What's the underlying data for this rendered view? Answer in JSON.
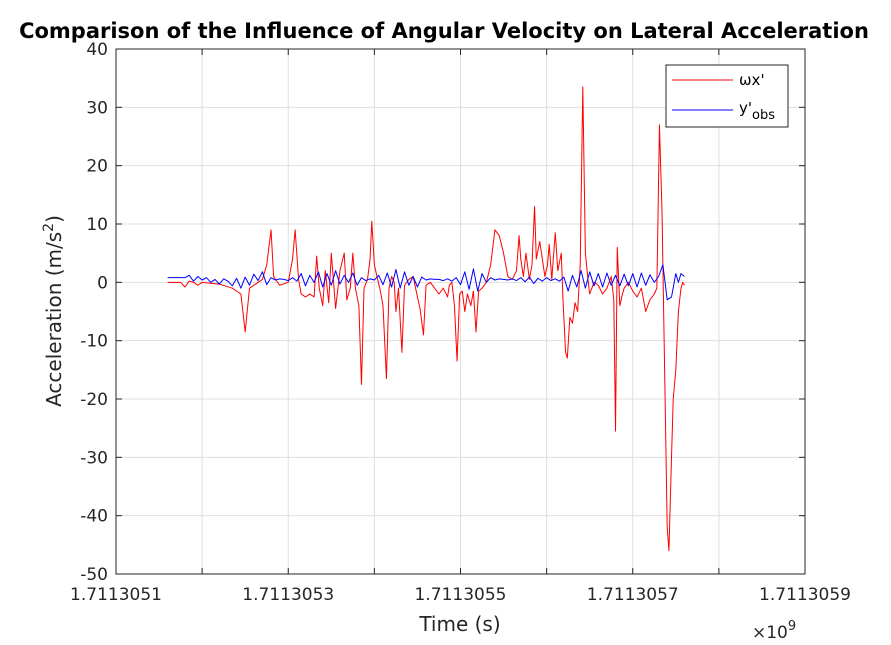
{
  "chart_data": {
    "type": "line",
    "title": "Comparison of the Influence of Angular Velocity on Lateral Acceleration",
    "xlabel": "Time (s)",
    "ylabel": "Acceleration (m/s²)",
    "ylabel_base": "Acceleration (m/s",
    "ylabel_sup": "2",
    "ylabel_end": ")",
    "x_exponent_prefix": "×10",
    "x_exponent": "9",
    "x_ticks": [
      "1.7113051",
      "1.7113053",
      "1.7113055",
      "1.7113057",
      "1.7113059"
    ],
    "x_tick_values": [
      1.7113051,
      1.7113053,
      1.7113055,
      1.7113057,
      1.7113059
    ],
    "xlim": [
      1.7113051,
      1.7113059
    ],
    "y_ticks": [
      "-50",
      "-40",
      "-30",
      "-20",
      "-10",
      "0",
      "10",
      "20",
      "30",
      "40"
    ],
    "y_tick_values": [
      -50,
      -40,
      -30,
      -20,
      -10,
      0,
      10,
      20,
      30,
      40
    ],
    "ylim": [
      -50,
      40
    ],
    "grid": true,
    "legend_position": "top-right",
    "series": [
      {
        "name": "ωx'",
        "label_main": "ωx'",
        "color": "#ff0000",
        "points": [
          [
            1.71130516,
            0.0
          ],
          [
            1.711305175,
            0.0
          ],
          [
            1.71130518,
            -0.8
          ],
          [
            1.711305185,
            0.2
          ],
          [
            1.71130519,
            0.0
          ],
          [
            1.711305195,
            -0.5
          ],
          [
            1.7113052,
            0.0
          ],
          [
            1.71130522,
            -0.3
          ],
          [
            1.711305235,
            -1.0
          ],
          [
            1.711305245,
            -2.0
          ],
          [
            1.71130525,
            -8.5
          ],
          [
            1.711305255,
            -1.0
          ],
          [
            1.71130527,
            0.5
          ],
          [
            1.711305275,
            3.0
          ],
          [
            1.71130528,
            9.0
          ],
          [
            1.711305283,
            1.0
          ],
          [
            1.71130529,
            -0.5
          ],
          [
            1.7113053,
            0.0
          ],
          [
            1.711305305,
            4.0
          ],
          [
            1.711305308,
            9.0
          ],
          [
            1.711305312,
            0.5
          ],
          [
            1.711305315,
            -2.0
          ],
          [
            1.71130532,
            -2.5
          ],
          [
            1.711305325,
            -2.0
          ],
          [
            1.71130533,
            -2.5
          ],
          [
            1.711305333,
            4.5
          ],
          [
            1.711305336,
            -1.0
          ],
          [
            1.71130534,
            -4.0
          ],
          [
            1.711305343,
            2.0
          ],
          [
            1.711305347,
            -3.5
          ],
          [
            1.71130535,
            5.0
          ],
          [
            1.711305355,
            -4.5
          ],
          [
            1.71130536,
            2.0
          ],
          [
            1.711305365,
            5.0
          ],
          [
            1.711305368,
            -3.0
          ],
          [
            1.711305372,
            -1.0
          ],
          [
            1.711305375,
            5.0
          ],
          [
            1.711305378,
            -1.0
          ],
          [
            1.711305382,
            -4.0
          ],
          [
            1.711305385,
            -17.5
          ],
          [
            1.711305388,
            -1.0
          ],
          [
            1.711305392,
            0.5
          ],
          [
            1.711305395,
            4.0
          ],
          [
            1.711305397,
            10.5
          ],
          [
            1.7113054,
            3.0
          ],
          [
            1.711305403,
            1.0
          ],
          [
            1.711305407,
            -1.5
          ],
          [
            1.71130541,
            -4.0
          ],
          [
            1.711305414,
            -16.5
          ],
          [
            1.711305417,
            -1.0
          ],
          [
            1.71130542,
            1.0
          ],
          [
            1.711305423,
            0.0
          ],
          [
            1.711305425,
            -5.0
          ],
          [
            1.711305428,
            -1.0
          ],
          [
            1.711305432,
            -12.0
          ],
          [
            1.711305435,
            -0.5
          ],
          [
            1.71130544,
            0.5
          ],
          [
            1.711305445,
            1.0
          ],
          [
            1.71130545,
            -2.5
          ],
          [
            1.711305453,
            -4.5
          ],
          [
            1.711305457,
            -9.0
          ],
          [
            1.71130546,
            -0.5
          ],
          [
            1.711305465,
            0.0
          ],
          [
            1.71130547,
            -1.0
          ],
          [
            1.711305475,
            -2.0
          ],
          [
            1.71130548,
            -1.0
          ],
          [
            1.711305485,
            -2.5
          ],
          [
            1.711305487,
            -0.5
          ],
          [
            1.71130549,
            0.0
          ],
          [
            1.711305493,
            -4.0
          ],
          [
            1.711305496,
            -13.5
          ],
          [
            1.711305499,
            -2.0
          ],
          [
            1.711305502,
            -1.5
          ],
          [
            1.711305505,
            -5.0
          ],
          [
            1.711305508,
            -2.0
          ],
          [
            1.711305512,
            -4.0
          ],
          [
            1.711305515,
            -1.5
          ],
          [
            1.711305518,
            -8.5
          ],
          [
            1.711305521,
            -1.5
          ],
          [
            1.711305525,
            -1.0
          ],
          [
            1.71130553,
            0.0
          ],
          [
            1.711305535,
            3.0
          ],
          [
            1.71130554,
            9.0
          ],
          [
            1.711305545,
            8.0
          ],
          [
            1.71130555,
            5.0
          ],
          [
            1.711305555,
            1.0
          ],
          [
            1.71130556,
            0.5
          ],
          [
            1.711305565,
            2.0
          ],
          [
            1.711305568,
            8.0
          ],
          [
            1.71130557,
            4.0
          ],
          [
            1.711305573,
            1.0
          ],
          [
            1.711305576,
            5.0
          ],
          [
            1.71130558,
            0.5
          ],
          [
            1.711305583,
            3.0
          ],
          [
            1.711305586,
            13.0
          ],
          [
            1.711305588,
            4.0
          ],
          [
            1.711305592,
            7.0
          ],
          [
            1.711305595,
            4.0
          ],
          [
            1.711305598,
            1.0
          ],
          [
            1.711305601,
            3.0
          ],
          [
            1.711305603,
            6.5
          ],
          [
            1.711305606,
            0.5
          ],
          [
            1.71130561,
            8.5
          ],
          [
            1.711305613,
            2.0
          ],
          [
            1.711305617,
            5.0
          ],
          [
            1.711305619,
            -3.0
          ],
          [
            1.711305622,
            -12.0
          ],
          [
            1.711305624,
            -13.0
          ],
          [
            1.711305627,
            -6.0
          ],
          [
            1.71130563,
            -7.0
          ],
          [
            1.711305633,
            -3.5
          ],
          [
            1.711305636,
            -5.0
          ],
          [
            1.711305639,
            3.0
          ],
          [
            1.711305642,
            33.5
          ],
          [
            1.711305645,
            5.0
          ],
          [
            1.711305648,
            0.5
          ],
          [
            1.71130565,
            -2.0
          ],
          [
            1.711305655,
            0.0
          ],
          [
            1.71130566,
            -0.5
          ],
          [
            1.711305665,
            -2.0
          ],
          [
            1.71130567,
            -1.0
          ],
          [
            1.711305675,
            1.0
          ],
          [
            1.711305678,
            -3.0
          ],
          [
            1.71130568,
            -25.5
          ],
          [
            1.711305682,
            6.0
          ],
          [
            1.711305685,
            -4.0
          ],
          [
            1.711305688,
            -2.0
          ],
          [
            1.71130569,
            -1.0
          ],
          [
            1.711305695,
            0.0
          ],
          [
            1.7113057,
            -1.5
          ],
          [
            1.711305705,
            -2.5
          ],
          [
            1.71130571,
            -1.0
          ],
          [
            1.711305715,
            -5.0
          ],
          [
            1.71130572,
            -3.0
          ],
          [
            1.711305725,
            -2.0
          ],
          [
            1.711305728,
            -1.0
          ],
          [
            1.711305731,
            27.0
          ],
          [
            1.711305734,
            12.0
          ],
          [
            1.711305737,
            -15.0
          ],
          [
            1.71130574,
            -42.0
          ],
          [
            1.711305742,
            -46.0
          ],
          [
            1.711305745,
            -30.0
          ],
          [
            1.711305747,
            -20.0
          ],
          [
            1.71130575,
            -15.0
          ],
          [
            1.711305753,
            -5.0
          ],
          [
            1.711305756,
            -1.0
          ],
          [
            1.711305758,
            0.0
          ],
          [
            1.71130576,
            -0.5
          ]
        ]
      },
      {
        "name": "y'obs",
        "label_main": "y'",
        "label_sub": "obs",
        "color": "#0000ff",
        "points": [
          [
            1.71130516,
            0.8
          ],
          [
            1.71130517,
            0.8
          ],
          [
            1.71130518,
            0.8
          ],
          [
            1.711305185,
            1.2
          ],
          [
            1.71130519,
            0.2
          ],
          [
            1.711305195,
            1.0
          ],
          [
            1.7113052,
            0.4
          ],
          [
            1.711305205,
            0.8
          ],
          [
            1.71130521,
            0.0
          ],
          [
            1.711305215,
            0.5
          ],
          [
            1.71130522,
            -0.3
          ],
          [
            1.711305225,
            0.6
          ],
          [
            1.71130523,
            0.2
          ],
          [
            1.711305235,
            -0.6
          ],
          [
            1.71130524,
            0.7
          ],
          [
            1.711305245,
            -1.0
          ],
          [
            1.71130525,
            0.9
          ],
          [
            1.711305255,
            -0.5
          ],
          [
            1.71130526,
            1.4
          ],
          [
            1.711305265,
            0.3
          ],
          [
            1.71130527,
            1.8
          ],
          [
            1.711305275,
            -0.4
          ],
          [
            1.71130528,
            0.8
          ],
          [
            1.711305285,
            0.4
          ],
          [
            1.71130529,
            0.6
          ],
          [
            1.711305295,
            0.5
          ],
          [
            1.7113053,
            0.3
          ],
          [
            1.711305305,
            0.8
          ],
          [
            1.71130531,
            0.2
          ],
          [
            1.711305315,
            1.5
          ],
          [
            1.71130532,
            -0.6
          ],
          [
            1.711305325,
            1.2
          ],
          [
            1.71130533,
            0.0
          ],
          [
            1.711305335,
            1.8
          ],
          [
            1.71130534,
            -0.8
          ],
          [
            1.711305345,
            1.5
          ],
          [
            1.71130535,
            -0.5
          ],
          [
            1.711305355,
            2.0
          ],
          [
            1.71130536,
            -0.3
          ],
          [
            1.711305365,
            1.2
          ],
          [
            1.71130537,
            0.0
          ],
          [
            1.711305375,
            1.6
          ],
          [
            1.71130538,
            -0.5
          ],
          [
            1.711305385,
            0.8
          ],
          [
            1.71130539,
            0.3
          ],
          [
            1.711305395,
            0.6
          ],
          [
            1.7113054,
            0.4
          ],
          [
            1.711305405,
            1.2
          ],
          [
            1.71130541,
            -0.4
          ],
          [
            1.711305415,
            1.6
          ],
          [
            1.71130542,
            -0.8
          ],
          [
            1.711305425,
            2.2
          ],
          [
            1.71130543,
            -1.0
          ],
          [
            1.711305435,
            1.8
          ],
          [
            1.71130544,
            -0.5
          ],
          [
            1.711305445,
            1.0
          ],
          [
            1.71130545,
            -0.8
          ],
          [
            1.711305455,
            0.9
          ],
          [
            1.71130546,
            0.4
          ],
          [
            1.711305465,
            0.6
          ],
          [
            1.71130547,
            0.5
          ],
          [
            1.711305475,
            0.5
          ],
          [
            1.71130548,
            0.3
          ],
          [
            1.711305485,
            0.6
          ],
          [
            1.71130549,
            0.2
          ],
          [
            1.711305495,
            0.8
          ],
          [
            1.7113055,
            -0.4
          ],
          [
            1.711305505,
            1.8
          ],
          [
            1.71130551,
            -1.2
          ],
          [
            1.711305515,
            2.3
          ],
          [
            1.71130552,
            -1.5
          ],
          [
            1.711305525,
            1.5
          ],
          [
            1.71130553,
            0.0
          ],
          [
            1.711305535,
            0.8
          ],
          [
            1.71130554,
            0.4
          ],
          [
            1.711305545,
            0.6
          ],
          [
            1.71130555,
            0.5
          ],
          [
            1.711305555,
            0.4
          ],
          [
            1.71130556,
            0.6
          ],
          [
            1.711305565,
            0.3
          ],
          [
            1.71130557,
            0.8
          ],
          [
            1.711305575,
            0.1
          ],
          [
            1.71130558,
            0.9
          ],
          [
            1.711305585,
            -0.2
          ],
          [
            1.71130559,
            0.7
          ],
          [
            1.711305595,
            0.2
          ],
          [
            1.7113056,
            0.8
          ],
          [
            1.711305605,
            0.3
          ],
          [
            1.71130561,
            0.6
          ],
          [
            1.711305615,
            0.2
          ],
          [
            1.71130562,
            0.9
          ],
          [
            1.711305625,
            -1.5
          ],
          [
            1.71130563,
            1.2
          ],
          [
            1.711305635,
            -0.8
          ],
          [
            1.71130564,
            2.0
          ],
          [
            1.711305645,
            -1.0
          ],
          [
            1.71130565,
            1.8
          ],
          [
            1.711305655,
            -0.6
          ],
          [
            1.71130566,
            1.5
          ],
          [
            1.711305665,
            -0.8
          ],
          [
            1.71130567,
            1.6
          ],
          [
            1.711305675,
            -0.5
          ],
          [
            1.71130568,
            1.2
          ],
          [
            1.711305685,
            -0.6
          ],
          [
            1.71130569,
            1.4
          ],
          [
            1.711305695,
            -0.6
          ],
          [
            1.7113057,
            1.5
          ],
          [
            1.711305705,
            -0.8
          ],
          [
            1.71130571,
            1.6
          ],
          [
            1.711305715,
            -0.5
          ],
          [
            1.71130572,
            1.3
          ],
          [
            1.711305725,
            0.0
          ],
          [
            1.71130573,
            1.0
          ],
          [
            1.711305735,
            3.0
          ],
          [
            1.71130574,
            -3.0
          ],
          [
            1.711305745,
            -2.5
          ],
          [
            1.71130575,
            1.5
          ],
          [
            1.711305753,
            0.0
          ],
          [
            1.711305756,
            1.5
          ],
          [
            1.71130576,
            1.0
          ]
        ]
      }
    ]
  }
}
